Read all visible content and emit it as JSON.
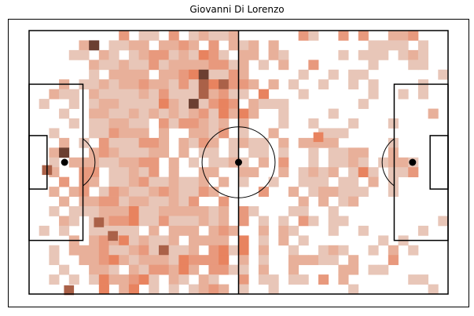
{
  "chart_data": {
    "type": "heatmap",
    "title": "Giovanni Di Lorenzo",
    "xlabel": "",
    "ylabel": "",
    "pitch": {
      "length_units": 105,
      "width_units": 68,
      "pitch_color": "#ffffff",
      "line_color": "#000000"
    },
    "grid": {
      "cols": 42,
      "rows": 27
    },
    "colormap": {
      "low": "#e8c6b8",
      "mid": "#e8835f",
      "high": "#6b3f31"
    },
    "density_rows": [
      ".........3.11.3.12112......31..3.3..223...",
      ".....26.1122.2232.3.212.2.........1111.1..",
      "....11.21.1233121431.22.21.....1.111.121..",
      "......2112113122223312.1.2..3.....1...11..",
      "......1.2222.223461132.....1..1.11.......1",
      "...2.112122322131545332.2.1..1..1.1....1..",
      "..211.2111121311152311.4...1......1..1.1..",
      ".1..1.122111142161343.2111.......1........",
      "...1..22112121212314242..1....1.........2.",
      "....1.112211.3133212.2...1..1...1...1.....",
      "..1...113222.2..2213.1..2....111..........",
      "...2.1.3111332.2132.1211.2.2222.....1.....",
      "..26..23211122.2.11.1.11.1..1.1122..2.....",
      "..1.222112233.2.1.1121.2.3..1.1121.1221...",
      "..2..33.11213.2..22..22..2.1212.141.113...",
      "...3.32.1123112112.2.1..1..111.11.2.1.....",
      "..2.23.132112321132....3..2.122111..1.....",
      "...2.223312211213..3.......2.2.12.........",
      "..1.1112224112222212.31...11..1...........",
      "...21.12334113111212.3.1.1.31.11.........1",
      ".1.1..11111.2.222.232..2.21...1..1.....1..",
      "....2.232412112.2222.4.1.2.1.......1.1....",
      "..1.2223112315112.3414.2..1..121..1.2.1...",
      "..1..223421222143334.2.1..22211.2...3.....",
      "...1..221.2133242.3311.2..2....22.11......",
      "..1.1.1422341.21.21..3.11.11.3.2......11..",
      ".......4.24.1.1.1232.1..1.......1.......1."
    ],
    "hotspots": [
      {
        "x": 10.0,
        "y": 67.0,
        "level": 5
      },
      {
        "x": 21.0,
        "y": 53.0,
        "level": 5
      },
      {
        "x": 17.5,
        "y": 49.5,
        "level": 5
      },
      {
        "x": 4.5,
        "y": 36.0,
        "level": 5
      },
      {
        "x": 72.5,
        "y": 27.5,
        "level": 4
      }
    ]
  }
}
